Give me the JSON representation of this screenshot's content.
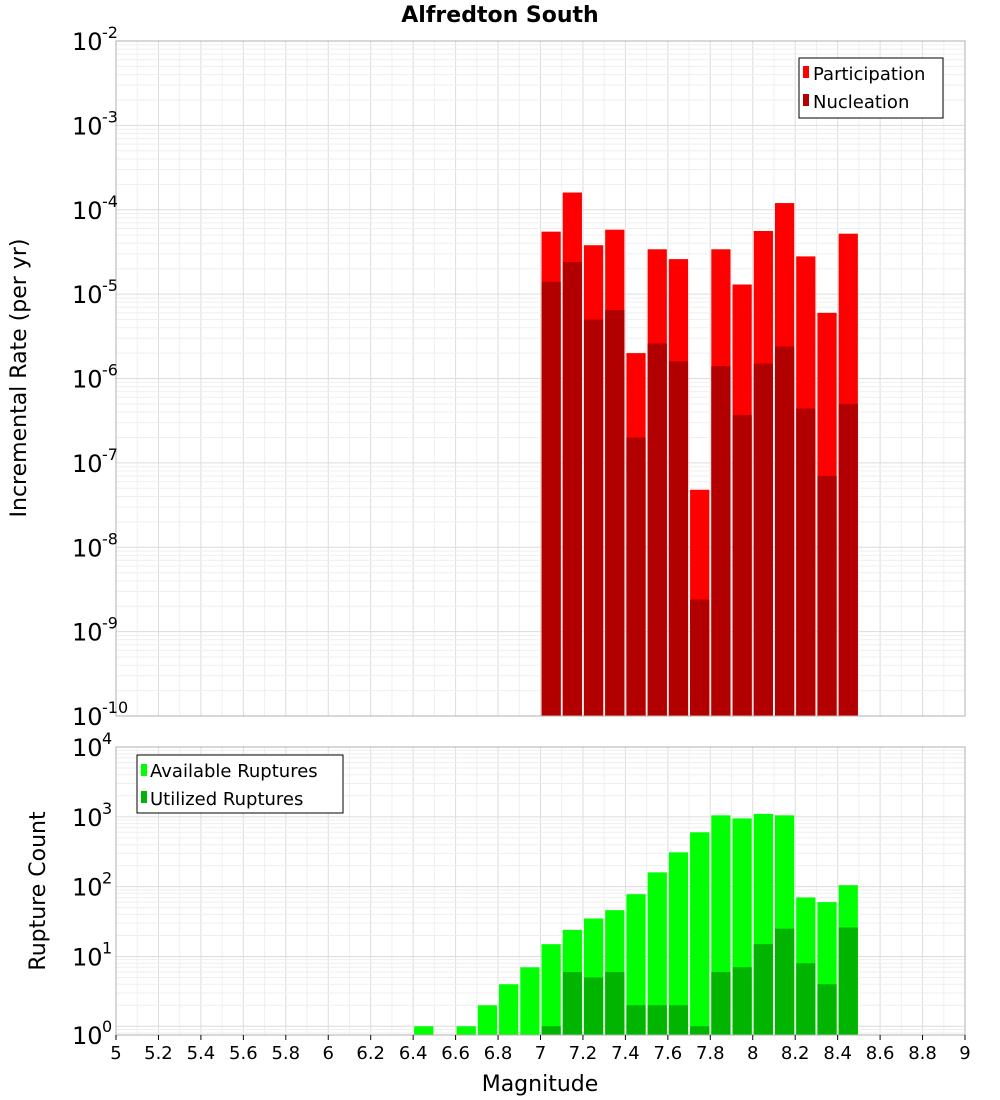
{
  "title": "Alfredton South",
  "colors": {
    "participation": "#ff0000",
    "nucleation": "#b20000",
    "available": "#00ff00",
    "utilized": "#00b400"
  },
  "chart_data": [
    {
      "type": "bar",
      "name": "rate-panel",
      "yscale": "log",
      "ylim": [
        1e-10,
        0.01
      ],
      "xlim": [
        5,
        9
      ],
      "ylabel": "Incremental Rate (per yr)",
      "y_ticks": [
        {
          "base": "10",
          "exp": "-10"
        },
        {
          "base": "10",
          "exp": "-9"
        },
        {
          "base": "10",
          "exp": "-8"
        },
        {
          "base": "10",
          "exp": "-7"
        },
        {
          "base": "10",
          "exp": "-6"
        },
        {
          "base": "10",
          "exp": "-5"
        },
        {
          "base": "10",
          "exp": "-4"
        },
        {
          "base": "10",
          "exp": "-3"
        },
        {
          "base": "10",
          "exp": "-2"
        }
      ],
      "legend": [
        "Participation",
        "Nucleation"
      ],
      "legend_position": "top-right",
      "x": [
        7.05,
        7.15,
        7.25,
        7.35,
        7.45,
        7.55,
        7.65,
        7.75,
        7.85,
        7.95,
        8.05,
        8.15,
        8.25,
        8.35,
        8.45
      ],
      "series": [
        {
          "name": "Participation",
          "values": [
            5.5e-05,
            0.00016,
            3.8e-05,
            5.8e-05,
            2e-06,
            3.4e-05,
            2.6e-05,
            4.8e-08,
            3.4e-05,
            1.3e-05,
            5.6e-05,
            0.00012,
            2.8e-05,
            6e-06,
            5.2e-05
          ]
        },
        {
          "name": "Nucleation",
          "values": [
            1.4e-05,
            2.4e-05,
            5e-06,
            6.5e-06,
            2e-07,
            2.6e-06,
            1.6e-06,
            2.4e-09,
            1.4e-06,
            3.7e-07,
            1.5e-06,
            2.4e-06,
            4.4e-07,
            7e-08,
            5e-07
          ]
        }
      ]
    },
    {
      "type": "bar",
      "name": "count-panel",
      "yscale": "log",
      "ylim": [
        0.75,
        10000
      ],
      "xlim": [
        5,
        9
      ],
      "xlabel": "Magnitude",
      "ylabel": "Rupture Count",
      "y_ticks": [
        {
          "base": "10",
          "exp": "0"
        },
        {
          "base": "10",
          "exp": "1"
        },
        {
          "base": "10",
          "exp": "2"
        },
        {
          "base": "10",
          "exp": "3"
        },
        {
          "base": "10",
          "exp": "4"
        }
      ],
      "x_ticks": [
        "5",
        "5.2",
        "5.4",
        "5.6",
        "5.8",
        "6",
        "6.2",
        "6.4",
        "6.6",
        "6.8",
        "7",
        "7.2",
        "7.4",
        "7.6",
        "7.8",
        "8",
        "8.2",
        "8.4",
        "8.6",
        "8.8",
        "9"
      ],
      "legend": [
        "Available Ruptures",
        "Utilized Ruptures"
      ],
      "legend_position": "top-left",
      "x": [
        6.45,
        6.55,
        6.65,
        6.75,
        6.85,
        6.95,
        7.05,
        7.15,
        7.25,
        7.35,
        7.45,
        7.55,
        7.65,
        7.75,
        7.85,
        7.95,
        8.05,
        8.15,
        8.25,
        8.35,
        8.45
      ],
      "series": [
        {
          "name": "Available Ruptures",
          "values": [
            1,
            0,
            1,
            2,
            4,
            7,
            15,
            24,
            35,
            46,
            78,
            160,
            310,
            600,
            1050,
            950,
            1100,
            1050,
            70,
            60,
            105
          ]
        },
        {
          "name": "Utilized Ruptures",
          "values": [
            0,
            0,
            0,
            0,
            0,
            0,
            1,
            6,
            5,
            6,
            2,
            2,
            2,
            1,
            6,
            7,
            15,
            25,
            8,
            4,
            26
          ]
        }
      ]
    }
  ]
}
